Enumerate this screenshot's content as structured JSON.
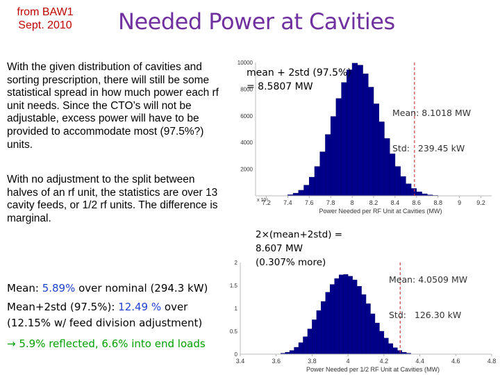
{
  "header": {
    "source_line1": "from BAW1",
    "source_line2": "Sept. 2010",
    "title": "Needed Power at Cavities"
  },
  "text": {
    "para1": "With the given distribution of cavities and sorting prescription, there will still be some statistical spread in how much power each rf unit needs. Since the CTO’s will not be adjustable, excess power will have to be provided to accommodate most (97.5%?) units.",
    "para2": "With no adjustment to the split between halves of an rf unit, the statistics are over 13 cavity feeds, or 1/2 rf units. The difference is marginal.",
    "mean_prefix": "Mean: ",
    "mean_value": "5.89%",
    "mean_suffix": " over nominal (294.3 kW)",
    "mean2_prefix": "Mean+2std (97.5%):  ",
    "mean2_value": "12.49 %",
    "mean2_suffix": " over",
    "feed_note": "(12.15% w/ feed division adjustment)",
    "arrow": "→",
    "reflected": " 5.9% reflected, 6.6% into end loads"
  },
  "colors": {
    "bar": "#00008b",
    "threshold": "#d04040",
    "title": "#7030a0",
    "source": "#c00000",
    "highlight_blue": "#1f3fd0",
    "highlight_green": "#00a000"
  },
  "chart_data": [
    {
      "type": "bar",
      "xlabel": "Power Needed per RF Unit at Cavities (MW)",
      "ylabel": "",
      "x_ticks": [
        "7.2",
        "7.4",
        "7.6",
        "7.8",
        "8",
        "8.2",
        "8.4",
        "8.6",
        "8.8",
        "9",
        "9.2"
      ],
      "y_ticks": [
        "2000",
        "4000",
        "6000",
        "8000",
        "10000"
      ],
      "y_multiplier": "x 10⁶",
      "xlim": [
        7.1,
        9.3
      ],
      "ylim": [
        0,
        10000
      ],
      "bin_width": 0.05,
      "x": [
        7.425,
        7.475,
        7.525,
        7.575,
        7.625,
        7.675,
        7.725,
        7.775,
        7.825,
        7.875,
        7.925,
        7.975,
        8.025,
        8.075,
        8.125,
        8.175,
        8.225,
        8.275,
        8.325,
        8.375,
        8.425,
        8.475,
        8.525,
        8.575,
        8.625,
        8.675,
        8.725,
        8.775
      ],
      "values": [
        80,
        200,
        420,
        800,
        1400,
        2200,
        3300,
        4600,
        5950,
        7300,
        8500,
        9450,
        9950,
        9800,
        9150,
        8150,
        6900,
        5550,
        4300,
        3150,
        2200,
        1450,
        900,
        550,
        300,
        150,
        70,
        30
      ],
      "threshold_x": 8.5807,
      "annotation": [
        "mean + 2std (97.5%)",
        "= 8.5807 MW"
      ],
      "stats": [
        "Mean: 8.1018 MW",
        "Std:   239.45 kW"
      ]
    },
    {
      "type": "bar",
      "xlabel": "Power Needed per 1/2 RF Unit at Cavities (MW)",
      "ylabel": "",
      "x_ticks": [
        "3.4",
        "3.6",
        "3.8",
        "4",
        "4.2",
        "4.4",
        "4.6",
        "4.8"
      ],
      "y_ticks": [
        "0",
        "0.5",
        "1",
        "1.5",
        "2"
      ],
      "xlim": [
        3.4,
        4.8
      ],
      "ylim": [
        0,
        2
      ],
      "bin_width": 0.025,
      "x": [
        3.6375,
        3.6625,
        3.6875,
        3.7125,
        3.7375,
        3.7625,
        3.7875,
        3.8125,
        3.8375,
        3.8625,
        3.8875,
        3.9125,
        3.9375,
        3.9625,
        3.9875,
        4.0125,
        4.0375,
        4.0625,
        4.0875,
        4.1125,
        4.1375,
        4.1625,
        4.1875,
        4.2125,
        4.2375,
        4.2625,
        4.2875,
        4.3125,
        4.3375
      ],
      "values": [
        0.02,
        0.04,
        0.08,
        0.15,
        0.25,
        0.38,
        0.55,
        0.75,
        0.95,
        1.15,
        1.35,
        1.52,
        1.65,
        1.73,
        1.74,
        1.7,
        1.62,
        1.48,
        1.3,
        1.1,
        0.88,
        0.68,
        0.5,
        0.35,
        0.23,
        0.14,
        0.08,
        0.04,
        0.02
      ],
      "threshold_x": 4.2905,
      "annotation": [
        "2×(mean+2std) =",
        "8.607 MW",
        "(0.307% more)"
      ],
      "stats": [
        "Mean: 4.0509 MW",
        "Std:   126.30 kW"
      ]
    }
  ]
}
